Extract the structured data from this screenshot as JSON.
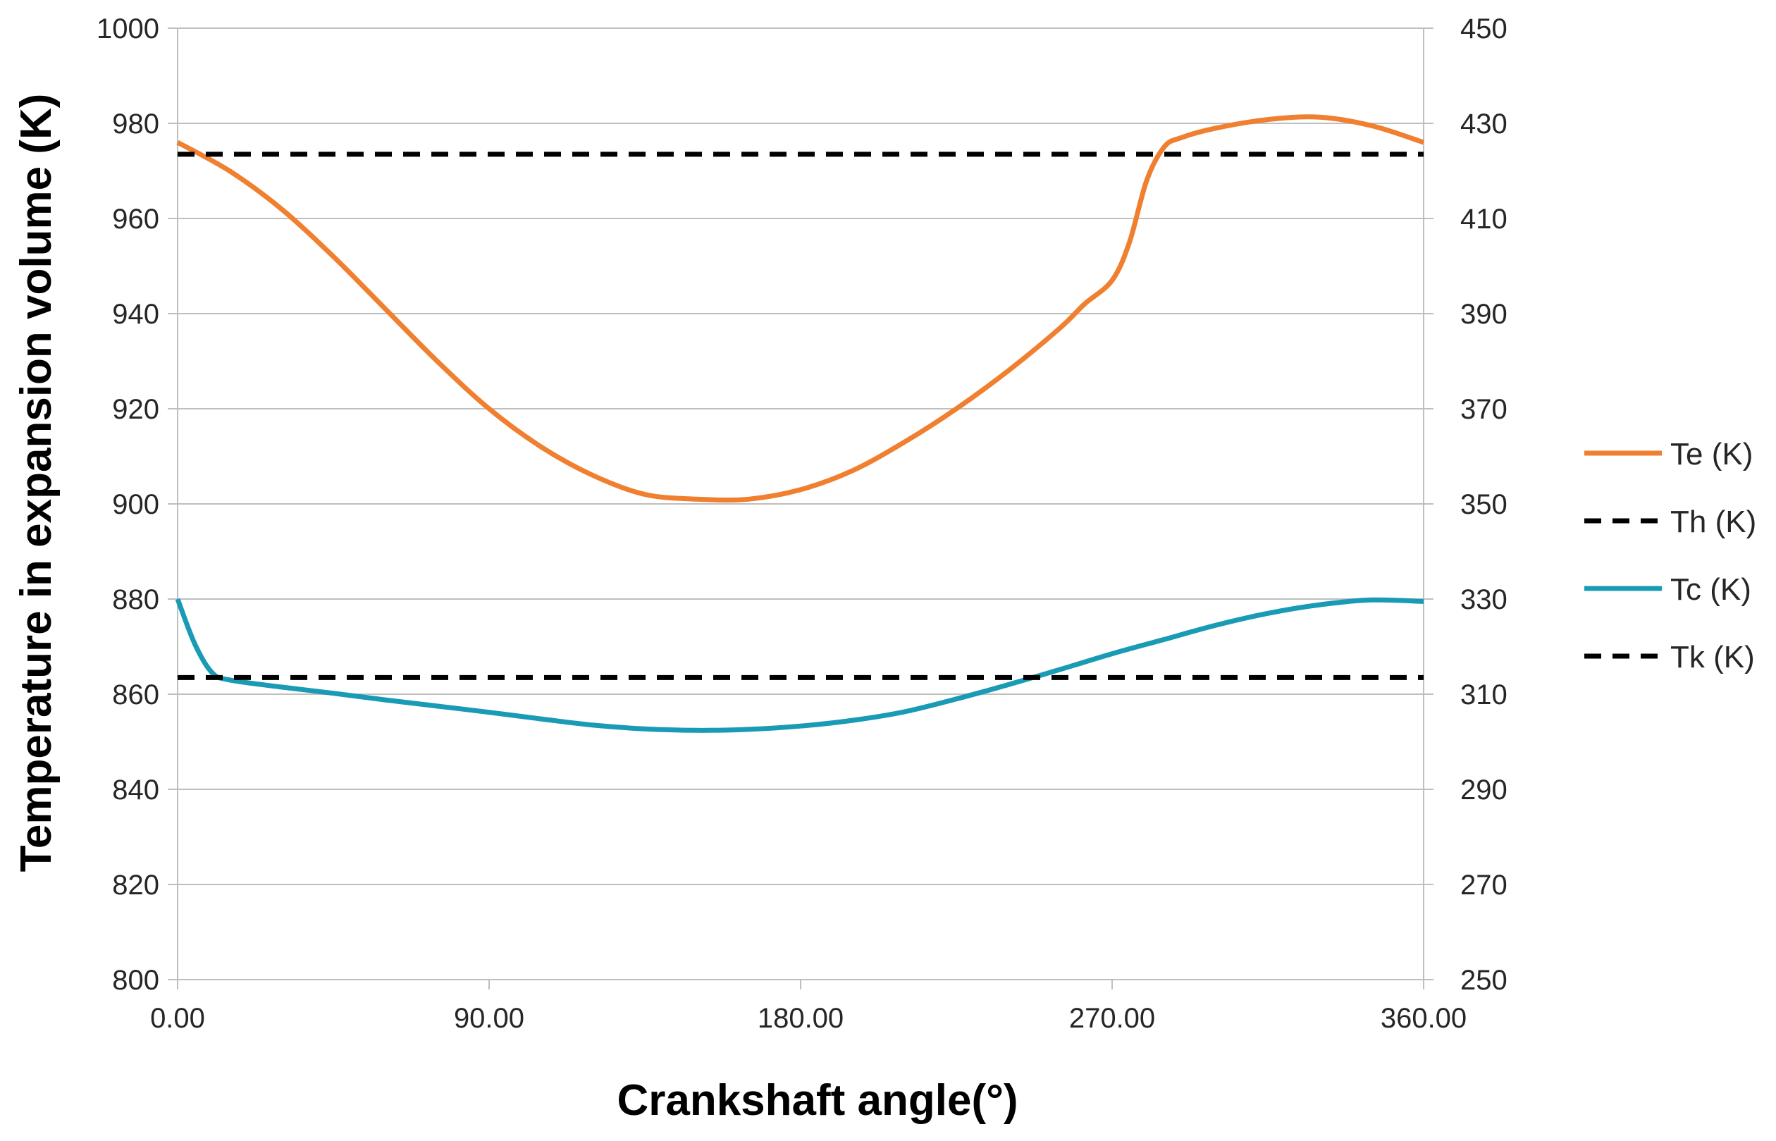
{
  "chart_data": {
    "type": "line",
    "title": "",
    "xlabel": "Crankshaft angle(°)",
    "ylabel": "Temperature in expansion volume (K)",
    "xlim": [
      0,
      360
    ],
    "ylim": [
      800,
      1000
    ],
    "y2lim": [
      250,
      450
    ],
    "x_ticks": [
      "0.00",
      "90.00",
      "180.00",
      "270.00",
      "360.00"
    ],
    "x_tick_values": [
      0,
      90,
      180,
      270,
      360
    ],
    "y_ticks": [
      "800",
      "820",
      "840",
      "860",
      "880",
      "900",
      "920",
      "940",
      "960",
      "980",
      "1000"
    ],
    "y_tick_values": [
      800,
      820,
      840,
      860,
      880,
      900,
      920,
      940,
      960,
      980,
      1000
    ],
    "y2_ticks": [
      "250",
      "270",
      "290",
      "310",
      "330",
      "350",
      "370",
      "390",
      "410",
      "430",
      "450"
    ],
    "y2_tick_values": [
      250,
      270,
      290,
      310,
      330,
      350,
      370,
      390,
      410,
      430,
      450
    ],
    "grid": true,
    "legend_position": "right",
    "series": [
      {
        "name": "Te (K)",
        "axis": "left",
        "color": "#F07F2F",
        "style": "solid",
        "x": [
          0,
          15,
          30,
          45,
          60,
          75,
          90,
          105,
          120,
          135,
          150,
          165,
          180,
          195,
          210,
          225,
          240,
          255,
          262,
          270,
          275,
          280,
          285,
          290,
          300,
          315,
          330,
          345,
          360
        ],
        "values": [
          976,
          970,
          962,
          952,
          941,
          930,
          920,
          912,
          906,
          902,
          901,
          901,
          903,
          907,
          913,
          920,
          928,
          937,
          942,
          947,
          955,
          968,
          975,
          977,
          979,
          980.8,
          981.3,
          979.5,
          976
        ]
      },
      {
        "name": "Th (K)",
        "axis": "left",
        "color": "#000000",
        "style": "dashed",
        "x": [
          0,
          360
        ],
        "values": [
          973.5,
          973.5
        ]
      },
      {
        "name": "Tc (K)",
        "axis": "right",
        "color": "#1A9BB5",
        "style": "solid",
        "x": [
          0,
          5,
          10,
          15,
          30,
          45,
          60,
          75,
          90,
          105,
          120,
          135,
          150,
          165,
          180,
          195,
          210,
          225,
          240,
          255,
          270,
          285,
          300,
          315,
          330,
          345,
          360
        ],
        "values": [
          330,
          320.5,
          314.5,
          313,
          311.5,
          310.2,
          308.8,
          307.5,
          306.2,
          304.8,
          303.5,
          302.7,
          302.4,
          302.6,
          303.3,
          304.5,
          306.3,
          309,
          312,
          315.2,
          318.5,
          321.5,
          324.5,
          327,
          328.8,
          329.8,
          329.5
        ]
      },
      {
        "name": "Tk (K)",
        "axis": "right",
        "color": "#000000",
        "style": "dashed",
        "x": [
          0,
          360
        ],
        "values": [
          313.5,
          313.5
        ]
      }
    ]
  }
}
